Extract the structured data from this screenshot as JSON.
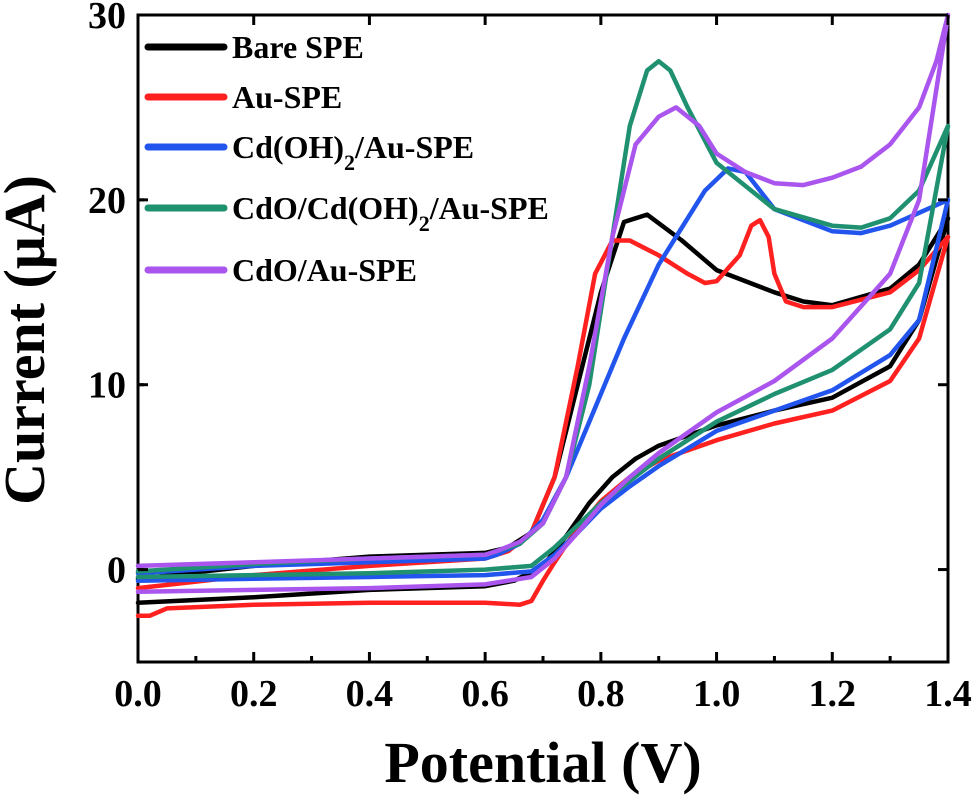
{
  "chart_data": {
    "type": "line",
    "xlabel": "Potential (V)",
    "ylabel": "Current (μA)",
    "xlim": [
      0.0,
      1.4
    ],
    "ylim": [
      -5,
      30
    ],
    "x_ticks": [
      0.0,
      0.2,
      0.4,
      0.6,
      0.8,
      1.0,
      1.2,
      1.4
    ],
    "x_tick_labels": [
      "0.0",
      "0.2",
      "0.4",
      "0.6",
      "0.8",
      "1.0",
      "1.2",
      "1.4"
    ],
    "y_ticks": [
      0,
      10,
      20,
      30
    ],
    "y_tick_labels": [
      "0",
      "10",
      "20",
      "30"
    ],
    "grid": false,
    "legend_position": "top-left",
    "series": [
      {
        "name": "Bare SPE",
        "name_parts": [
          {
            "text": "Bare SPE"
          }
        ],
        "color": "#000000",
        "forward": [
          [
            0.0,
            -1.8
          ],
          [
            0.2,
            -1.5
          ],
          [
            0.4,
            -1.1
          ],
          [
            0.6,
            -0.9
          ],
          [
            0.65,
            -0.6
          ],
          [
            0.7,
            0.2
          ],
          [
            0.74,
            1.8
          ],
          [
            0.78,
            3.6
          ],
          [
            0.82,
            5.0
          ],
          [
            0.86,
            6.0
          ],
          [
            0.9,
            6.7
          ],
          [
            1.0,
            7.8
          ],
          [
            1.1,
            8.6
          ],
          [
            1.2,
            9.3
          ],
          [
            1.3,
            11.0
          ],
          [
            1.35,
            13.5
          ],
          [
            1.4,
            19.0
          ]
        ],
        "reverse": [
          [
            1.4,
            19.0
          ],
          [
            1.35,
            16.5
          ],
          [
            1.3,
            15.2
          ],
          [
            1.2,
            14.3
          ],
          [
            1.15,
            14.5
          ],
          [
            1.1,
            15.0
          ],
          [
            1.0,
            16.2
          ],
          [
            0.94,
            17.8
          ],
          [
            0.88,
            19.2
          ],
          [
            0.84,
            18.8
          ],
          [
            0.8,
            15.0
          ],
          [
            0.76,
            10.0
          ],
          [
            0.72,
            5.0
          ],
          [
            0.68,
            2.0
          ],
          [
            0.64,
            1.2
          ],
          [
            0.6,
            0.9
          ],
          [
            0.4,
            0.7
          ],
          [
            0.2,
            0.2
          ],
          [
            0.0,
            -0.5
          ]
        ]
      },
      {
        "name": "Au-SPE",
        "name_parts": [
          {
            "text": "Au-SPE"
          }
        ],
        "color": "#ff2020",
        "forward": [
          [
            0.0,
            -2.5
          ],
          [
            0.02,
            -2.5
          ],
          [
            0.05,
            -2.1
          ],
          [
            0.2,
            -1.9
          ],
          [
            0.4,
            -1.8
          ],
          [
            0.6,
            -1.8
          ],
          [
            0.66,
            -1.9
          ],
          [
            0.68,
            -1.7
          ],
          [
            0.7,
            -0.6
          ],
          [
            0.72,
            0.4
          ],
          [
            0.75,
            1.8
          ],
          [
            0.8,
            3.7
          ],
          [
            0.85,
            5.0
          ],
          [
            0.9,
            5.9
          ],
          [
            1.0,
            7.0
          ],
          [
            1.1,
            7.9
          ],
          [
            1.2,
            8.6
          ],
          [
            1.3,
            10.2
          ],
          [
            1.35,
            12.5
          ],
          [
            1.4,
            18.0
          ]
        ],
        "reverse": [
          [
            1.4,
            18.0
          ],
          [
            1.35,
            16.2
          ],
          [
            1.3,
            15.0
          ],
          [
            1.2,
            14.2
          ],
          [
            1.15,
            14.2
          ],
          [
            1.12,
            14.5
          ],
          [
            1.1,
            16.0
          ],
          [
            1.09,
            18.0
          ],
          [
            1.075,
            18.9
          ],
          [
            1.06,
            18.6
          ],
          [
            1.04,
            17.0
          ],
          [
            1.0,
            15.6
          ],
          [
            0.98,
            15.5
          ],
          [
            0.95,
            16.0
          ],
          [
            0.9,
            17.0
          ],
          [
            0.85,
            17.8
          ],
          [
            0.82,
            17.8
          ],
          [
            0.79,
            16.0
          ],
          [
            0.76,
            11.0
          ],
          [
            0.72,
            5.0
          ],
          [
            0.68,
            2.0
          ],
          [
            0.64,
            1.0
          ],
          [
            0.6,
            0.6
          ],
          [
            0.4,
            0.2
          ],
          [
            0.2,
            -0.3
          ],
          [
            0.0,
            -1.0
          ]
        ]
      },
      {
        "name": "Cd(OH)2/Au-SPE",
        "name_parts": [
          {
            "text": "Cd(OH)"
          },
          {
            "text": "2",
            "sub": true
          },
          {
            "text": "/Au-SPE"
          }
        ],
        "color": "#2255ee",
        "forward": [
          [
            0.0,
            -0.6
          ],
          [
            0.2,
            -0.5
          ],
          [
            0.4,
            -0.4
          ],
          [
            0.6,
            -0.3
          ],
          [
            0.68,
            -0.1
          ],
          [
            0.72,
            0.8
          ],
          [
            0.76,
            2.0
          ],
          [
            0.8,
            3.3
          ],
          [
            0.85,
            4.5
          ],
          [
            0.9,
            5.6
          ],
          [
            1.0,
            7.5
          ],
          [
            1.1,
            8.6
          ],
          [
            1.2,
            9.7
          ],
          [
            1.3,
            11.6
          ],
          [
            1.35,
            13.5
          ],
          [
            1.4,
            20.0
          ]
        ],
        "reverse": [
          [
            1.4,
            20.0
          ],
          [
            1.35,
            19.3
          ],
          [
            1.3,
            18.6
          ],
          [
            1.25,
            18.2
          ],
          [
            1.2,
            18.3
          ],
          [
            1.1,
            19.5
          ],
          [
            1.05,
            21.5
          ],
          [
            1.02,
            21.7
          ],
          [
            0.98,
            20.5
          ],
          [
            0.9,
            16.5
          ],
          [
            0.84,
            12.5
          ],
          [
            0.78,
            8.0
          ],
          [
            0.74,
            5.0
          ],
          [
            0.7,
            2.7
          ],
          [
            0.66,
            1.4
          ],
          [
            0.62,
            0.8
          ],
          [
            0.6,
            0.6
          ],
          [
            0.4,
            0.4
          ],
          [
            0.2,
            0.2
          ],
          [
            0.0,
            -0.2
          ]
        ]
      },
      {
        "name": "CdO/Cd(OH)2/Au-SPE",
        "name_parts": [
          {
            "text": "CdO/Cd(OH)"
          },
          {
            "text": "2",
            "sub": true
          },
          {
            "text": "/Au-SPE"
          }
        ],
        "color": "#1f9070",
        "forward": [
          [
            0.0,
            -0.4
          ],
          [
            0.2,
            -0.3
          ],
          [
            0.4,
            -0.2
          ],
          [
            0.6,
            0.0
          ],
          [
            0.68,
            0.2
          ],
          [
            0.72,
            1.2
          ],
          [
            0.76,
            2.4
          ],
          [
            0.8,
            3.6
          ],
          [
            0.85,
            4.8
          ],
          [
            0.9,
            6.0
          ],
          [
            1.0,
            8.0
          ],
          [
            1.1,
            9.5
          ],
          [
            1.2,
            10.8
          ],
          [
            1.3,
            13.0
          ],
          [
            1.35,
            15.5
          ],
          [
            1.4,
            24.0
          ]
        ],
        "reverse": [
          [
            1.4,
            24.0
          ],
          [
            1.35,
            20.5
          ],
          [
            1.3,
            19.0
          ],
          [
            1.25,
            18.5
          ],
          [
            1.2,
            18.6
          ],
          [
            1.1,
            19.5
          ],
          [
            1.0,
            22.0
          ],
          [
            0.95,
            25.0
          ],
          [
            0.92,
            27.0
          ],
          [
            0.9,
            27.5
          ],
          [
            0.88,
            27.0
          ],
          [
            0.85,
            24.0
          ],
          [
            0.82,
            18.0
          ],
          [
            0.78,
            10.0
          ],
          [
            0.74,
            5.0
          ],
          [
            0.7,
            2.5
          ],
          [
            0.66,
            1.4
          ],
          [
            0.62,
            1.0
          ],
          [
            0.6,
            0.8
          ],
          [
            0.4,
            0.6
          ],
          [
            0.2,
            0.3
          ],
          [
            0.0,
            -0.1
          ]
        ]
      },
      {
        "name": "CdO/Au-SPE",
        "name_parts": [
          {
            "text": "CdO/Au-SPE"
          }
        ],
        "color": "#aa55ee",
        "forward": [
          [
            0.0,
            -1.2
          ],
          [
            0.2,
            -1.1
          ],
          [
            0.4,
            -1.0
          ],
          [
            0.6,
            -0.8
          ],
          [
            0.68,
            -0.4
          ],
          [
            0.72,
            0.6
          ],
          [
            0.76,
            2.0
          ],
          [
            0.8,
            3.5
          ],
          [
            0.85,
            5.0
          ],
          [
            0.9,
            6.3
          ],
          [
            1.0,
            8.5
          ],
          [
            1.1,
            10.2
          ],
          [
            1.2,
            12.5
          ],
          [
            1.3,
            16.0
          ],
          [
            1.35,
            20.0
          ],
          [
            1.4,
            30.0
          ]
        ],
        "reverse": [
          [
            1.4,
            30.0
          ],
          [
            1.38,
            27.5
          ],
          [
            1.35,
            25.0
          ],
          [
            1.3,
            23.0
          ],
          [
            1.25,
            21.8
          ],
          [
            1.2,
            21.2
          ],
          [
            1.15,
            20.8
          ],
          [
            1.1,
            20.9
          ],
          [
            1.05,
            21.5
          ],
          [
            1.0,
            22.5
          ],
          [
            0.97,
            24.0
          ],
          [
            0.93,
            25.0
          ],
          [
            0.9,
            24.5
          ],
          [
            0.86,
            23.0
          ],
          [
            0.82,
            18.0
          ],
          [
            0.78,
            11.0
          ],
          [
            0.74,
            5.0
          ],
          [
            0.7,
            2.5
          ],
          [
            0.66,
            1.5
          ],
          [
            0.62,
            1.0
          ],
          [
            0.6,
            0.8
          ],
          [
            0.4,
            0.6
          ],
          [
            0.2,
            0.4
          ],
          [
            0.0,
            0.2
          ]
        ]
      }
    ]
  }
}
